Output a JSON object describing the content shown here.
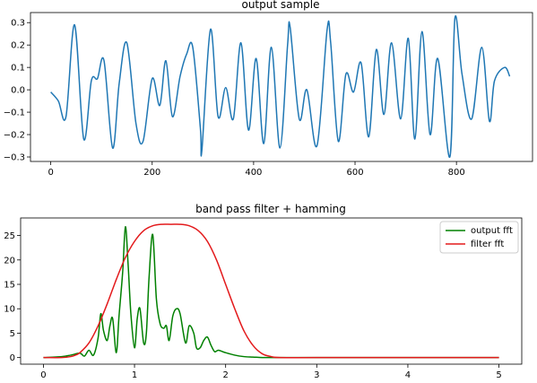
{
  "chart_data": [
    {
      "type": "line",
      "title": "output sample",
      "xlabel": "",
      "ylabel": "",
      "xlim": [
        -40,
        950
      ],
      "ylim": [
        -0.32,
        0.345
      ],
      "xticks": [
        0,
        200,
        400,
        600,
        800
      ],
      "xtick_labels": [
        "0",
        "200",
        "400",
        "600",
        "800"
      ],
      "yticks": [
        -0.3,
        -0.2,
        -0.1,
        0.0,
        0.1,
        0.2,
        0.3
      ],
      "ytick_labels": [
        "−0.3",
        "−0.2",
        "−0.1",
        "0.0",
        "0.1",
        "0.2",
        "0.3"
      ],
      "grid": false,
      "series": [
        {
          "color": "#1f77b4",
          "x": [
            0,
            15,
            30,
            47,
            65,
            80,
            92,
            105,
            122,
            135,
            150,
            168,
            182,
            200,
            215,
            227,
            240,
            255,
            268,
            280,
            295,
            298,
            315,
            330,
            345,
            360,
            375,
            390,
            405,
            420,
            435,
            452,
            467,
            472,
            490,
            505,
            525,
            545,
            552,
            567,
            582,
            597,
            612,
            627,
            642,
            657,
            672,
            690,
            705,
            718,
            732,
            748,
            763,
            787,
            797,
            811,
            830,
            850,
            865,
            875,
            895,
            905
          ],
          "y": [
            -0.01,
            -0.05,
            -0.12,
            0.29,
            -0.22,
            0.04,
            0.05,
            0.13,
            -0.26,
            0.03,
            0.21,
            -0.15,
            -0.23,
            0.05,
            -0.07,
            0.13,
            -0.12,
            0.06,
            0.16,
            0.19,
            -0.17,
            -0.27,
            0.27,
            -0.12,
            0.01,
            -0.13,
            0.21,
            -0.18,
            0.14,
            -0.24,
            0.19,
            -0.26,
            0.2,
            0.28,
            -0.13,
            0.0,
            -0.25,
            0.27,
            0.21,
            -0.23,
            0.07,
            -0.01,
            0.12,
            -0.21,
            0.18,
            -0.11,
            0.21,
            -0.13,
            0.23,
            -0.22,
            0.26,
            -0.2,
            0.14,
            -0.3,
            0.32,
            0.07,
            -0.13,
            0.19,
            -0.14,
            0.04,
            0.1,
            0.06
          ]
        }
      ]
    },
    {
      "type": "line",
      "title": "band pass filter + hamming",
      "xlabel": "",
      "ylabel": "",
      "xlim": [
        -0.25,
        5.25
      ],
      "ylim": [
        -1.35,
        28.6
      ],
      "xticks": [
        0,
        1,
        2,
        3,
        4,
        5
      ],
      "xtick_labels": [
        "0",
        "1",
        "2",
        "3",
        "4",
        "5"
      ],
      "yticks": [
        0,
        5,
        10,
        15,
        20,
        25
      ],
      "ytick_labels": [
        "0",
        "5",
        "10",
        "15",
        "20",
        "25"
      ],
      "grid": false,
      "legend": {
        "position": "top-right"
      },
      "series": [
        {
          "name": "output fft",
          "color": "#008000",
          "x": [
            0.0,
            0.2,
            0.3,
            0.4,
            0.45,
            0.5,
            0.55,
            0.6,
            0.63,
            0.66,
            0.7,
            0.73,
            0.76,
            0.8,
            0.83,
            0.87,
            0.9,
            0.93,
            0.96,
            1.0,
            1.03,
            1.06,
            1.1,
            1.13,
            1.16,
            1.2,
            1.24,
            1.28,
            1.32,
            1.35,
            1.38,
            1.42,
            1.46,
            1.5,
            1.56,
            1.6,
            1.65,
            1.68,
            1.72,
            1.76,
            1.8,
            1.84,
            1.88,
            1.92,
            2.0,
            2.1,
            2.2,
            2.3,
            2.4,
            2.5,
            3.0,
            4.0,
            5.0
          ],
          "y": [
            0.0,
            0.2,
            0.5,
            0.9,
            0.3,
            1.5,
            0.5,
            4.0,
            9.0,
            5.5,
            3.5,
            6.5,
            8.0,
            1.0,
            8.5,
            17.5,
            26.8,
            19.0,
            9.0,
            2.0,
            8.0,
            10.0,
            3.0,
            5.0,
            16.5,
            25.2,
            12.0,
            7.0,
            6.0,
            6.5,
            3.5,
            8.5,
            10.0,
            9.0,
            3.0,
            6.5,
            5.0,
            2.0,
            2.0,
            3.5,
            4.2,
            2.5,
            1.2,
            1.5,
            1.0,
            0.5,
            0.2,
            0.1,
            0.0,
            0.0,
            0.0,
            0.0,
            0.0
          ]
        },
        {
          "name": "filter fft",
          "color": "#e31a1c",
          "x": [
            0.0,
            0.2,
            0.3,
            0.35,
            0.4,
            0.5,
            0.6,
            0.7,
            0.8,
            0.9,
            1.0,
            1.1,
            1.2,
            1.3,
            1.4,
            1.5,
            1.6,
            1.7,
            1.8,
            1.9,
            2.0,
            2.1,
            2.2,
            2.3,
            2.4,
            2.5,
            2.6,
            3.0,
            4.0,
            5.0
          ],
          "y": [
            0.0,
            0.0,
            0.2,
            0.5,
            1.0,
            3.0,
            6.5,
            11.0,
            16.0,
            20.5,
            23.8,
            26.0,
            27.0,
            27.3,
            27.3,
            27.3,
            27.0,
            26.0,
            23.8,
            20.0,
            15.0,
            10.0,
            5.5,
            2.5,
            0.8,
            0.2,
            0.0,
            0.0,
            0.0,
            0.0
          ]
        }
      ]
    }
  ]
}
